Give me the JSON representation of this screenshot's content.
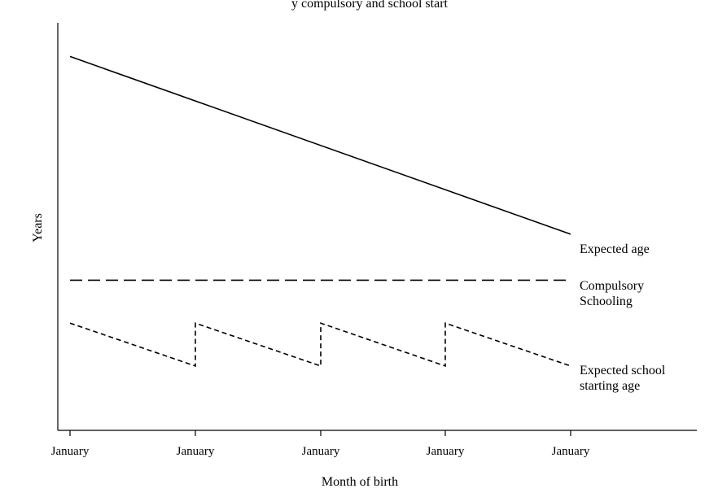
{
  "title_partial": "y compulsory   and school start   ",
  "chart_data": {
    "type": "line",
    "xlabel": "Month of birth",
    "ylabel": "Years",
    "x_tick_labels": [
      "January",
      "January",
      "January",
      "January",
      "January"
    ],
    "grid": false,
    "legend": "none",
    "series_labels": [
      {
        "lines": [
          "Expected age"
        ]
      },
      {
        "lines": [
          "Compulsory",
          "Schooling"
        ]
      },
      {
        "lines": [
          "Expected school",
          "starting age"
        ]
      }
    ],
    "series": [
      {
        "style": "solid",
        "points": [
          [
            0,
            6.1
          ],
          [
            4,
            3.2
          ]
        ]
      },
      {
        "style": "long-dash",
        "points": [
          [
            0,
            2.45
          ],
          [
            4,
            2.45
          ]
        ]
      },
      {
        "style": "short-dash",
        "points": [
          [
            0,
            1.75
          ],
          [
            1,
            1.05
          ],
          [
            1,
            1.75
          ],
          [
            2,
            1.05
          ],
          [
            2,
            1.75
          ],
          [
            3,
            1.05
          ],
          [
            3,
            1.75
          ],
          [
            4,
            1.05
          ]
        ]
      }
    ],
    "xlim": [
      -0.1,
      5
    ],
    "ylim": [
      0,
      6.65
    ]
  }
}
